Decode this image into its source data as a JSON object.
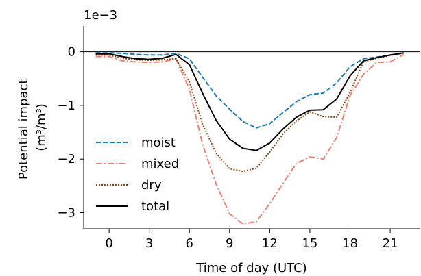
{
  "chart_data": {
    "type": "line",
    "title": "",
    "xlabel": "Time of day (UTC)",
    "ylabel_line1": "Potential impact",
    "ylabel_line2": "(m³/m³)",
    "offset_text": "1e−3",
    "xticks": [
      0,
      3,
      6,
      9,
      12,
      15,
      18,
      21
    ],
    "yticks": [
      0,
      -1,
      -2,
      -3
    ],
    "xlim": [
      -1.9,
      23.2
    ],
    "ylim": [
      -3.3,
      0.48
    ],
    "y_scale_factor": 0.001,
    "zero_line": true,
    "legend_position": "lower-left",
    "x": [
      -1,
      0,
      1,
      2,
      3,
      4,
      5,
      6,
      7,
      8,
      9,
      10,
      11,
      12,
      13,
      14,
      15,
      16,
      17,
      18,
      19,
      20,
      21,
      22
    ],
    "series": [
      {
        "name": "moist",
        "color": "#1f77b4",
        "dash": "dashed",
        "values": [
          -0.02,
          -0.02,
          -0.03,
          -0.05,
          -0.06,
          -0.06,
          -0.03,
          -0.13,
          -0.48,
          -0.82,
          -1.07,
          -1.3,
          -1.42,
          -1.34,
          -1.13,
          -0.93,
          -0.8,
          -0.77,
          -0.58,
          -0.28,
          -0.13,
          -0.1,
          -0.06,
          -0.03
        ]
      },
      {
        "name": "mixed",
        "color": "#f08070",
        "dash": "dashdot",
        "values": [
          -0.09,
          -0.09,
          -0.17,
          -0.19,
          -0.2,
          -0.19,
          -0.13,
          -0.7,
          -1.74,
          -2.47,
          -3.02,
          -3.21,
          -3.17,
          -2.83,
          -2.45,
          -2.08,
          -1.96,
          -2.0,
          -1.6,
          -0.82,
          -0.42,
          -0.2,
          -0.19,
          -0.05
        ]
      },
      {
        "name": "dry",
        "color": "#8b4513",
        "dash": "dotted",
        "values": [
          -0.06,
          -0.06,
          -0.12,
          -0.15,
          -0.16,
          -0.15,
          -0.13,
          -0.56,
          -1.36,
          -1.89,
          -2.18,
          -2.23,
          -2.17,
          -1.87,
          -1.53,
          -1.29,
          -1.12,
          -1.21,
          -1.22,
          -0.76,
          -0.19,
          -0.12,
          -0.07,
          -0.02
        ]
      },
      {
        "name": "total",
        "color": "#000000",
        "dash": "solid",
        "values": [
          -0.04,
          -0.04,
          -0.09,
          -0.13,
          -0.14,
          -0.12,
          -0.05,
          -0.24,
          -0.78,
          -1.28,
          -1.63,
          -1.8,
          -1.84,
          -1.7,
          -1.44,
          -1.22,
          -1.09,
          -1.08,
          -0.88,
          -0.45,
          -0.17,
          -0.11,
          -0.06,
          -0.02
        ]
      }
    ]
  }
}
